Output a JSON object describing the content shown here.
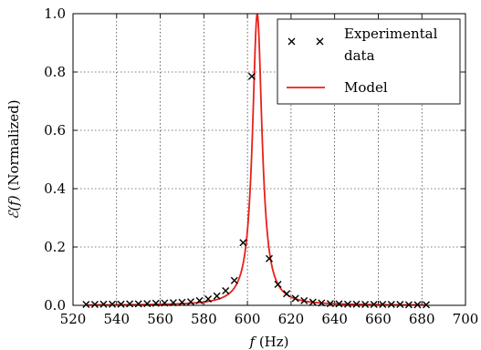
{
  "chart_data": {
    "type": "scatter",
    "xlabel": "f (Hz)",
    "xlabel_italic": "f",
    "xlabel_rest": " (Hz)",
    "ylabel": "ℰ(f) (Normalized)",
    "ylabel_italic": "ℰ(f)",
    "ylabel_rest": " (Normalized)",
    "xlim": [
      520,
      700
    ],
    "ylim": [
      0.0,
      1.0
    ],
    "xticks": [
      520,
      540,
      560,
      580,
      600,
      620,
      640,
      660,
      680,
      700
    ],
    "yticks": [
      0.0,
      0.2,
      0.4,
      0.6,
      0.8,
      1.0
    ],
    "ytick_labels": [
      "0.0",
      "0.2",
      "0.4",
      "0.6",
      "0.8",
      "1.0"
    ],
    "grid": true,
    "legend_position": "top-right",
    "series": [
      {
        "name": "Experimental data",
        "legend_lines": [
          "Experimental",
          "data"
        ],
        "kind": "scatter",
        "marker": "x",
        "color": "#000000",
        "x": [
          526,
          530,
          534,
          538,
          542,
          546,
          550,
          554,
          558,
          562,
          566,
          570,
          574,
          578,
          582,
          586,
          590,
          594,
          598,
          602,
          610,
          614,
          618,
          622,
          626,
          630,
          634,
          638,
          642,
          646,
          650,
          654,
          658,
          662,
          666,
          670,
          674,
          678,
          682
        ],
        "y": [
          0.003,
          0.003,
          0.004,
          0.004,
          0.004,
          0.005,
          0.005,
          0.006,
          0.007,
          0.008,
          0.009,
          0.01,
          0.012,
          0.016,
          0.022,
          0.032,
          0.05,
          0.085,
          0.215,
          0.785,
          0.16,
          0.072,
          0.04,
          0.024,
          0.016,
          0.011,
          0.008,
          0.006,
          0.005,
          0.004,
          0.004,
          0.003,
          0.003,
          0.003,
          0.003,
          0.003,
          0.002,
          0.002,
          0.002
        ]
      },
      {
        "name": "Model",
        "kind": "line",
        "color": "#e8201a",
        "function": "lorentzian",
        "peak_x": 604.5,
        "half_width": 2.65,
        "peak_y": 1.0,
        "x_range": [
          526,
          682
        ]
      }
    ]
  }
}
